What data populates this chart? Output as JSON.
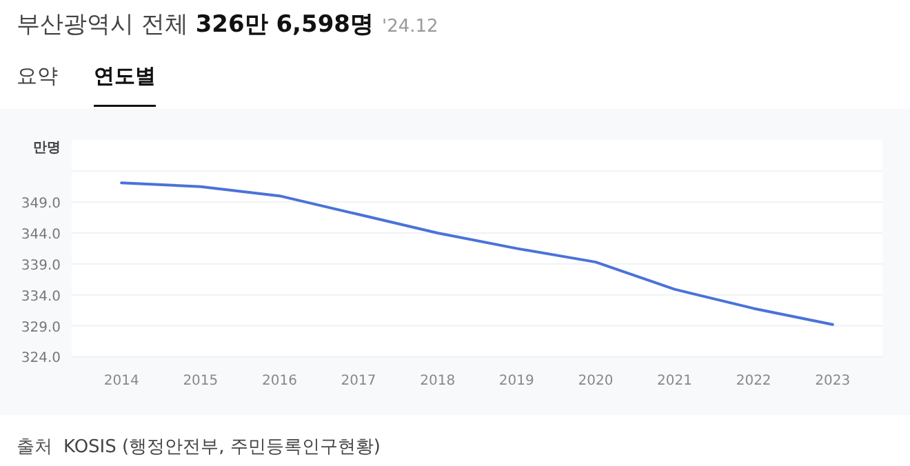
{
  "chart_data": {
    "type": "line",
    "title": "부산광역시 전체 **326만 6,598명**",
    "subtitle": "'24.12",
    "ylabel": "만명",
    "annotations": [
      "요약",
      "연도별",
      "출처",
      "KOSIS (행정안전부, 주민등록인구현황)"
    ],
    "categories": [
      "2014",
      "2015",
      "2016",
      "2017",
      "2018",
      "2019",
      "2020",
      "2021",
      "2022",
      "2023"
    ],
    "series": [
      {
        "color": "#4a72d9",
        "values": [
          352.1,
          351.5,
          350.0,
          347.0,
          344.0,
          341.5,
          339.3,
          334.9,
          331.8,
          329.2
        ]
      }
    ],
    "ylim": [
      324,
      359
    ],
    "yticks": [
      {
        "value": 324,
        "label": "324.0"
      },
      {
        "value": 329,
        "label": "329.0"
      },
      {
        "value": 334,
        "label": "334.0"
      },
      {
        "value": 339,
        "label": "339.0"
      },
      {
        "value": 344,
        "label": "344.0"
      },
      {
        "value": 349,
        "label": "349.0"
      },
      {
        "value": 354,
        "label": null
      }
    ],
    "grid": "y",
    "marker": "none",
    "line_style": "solid"
  }
}
